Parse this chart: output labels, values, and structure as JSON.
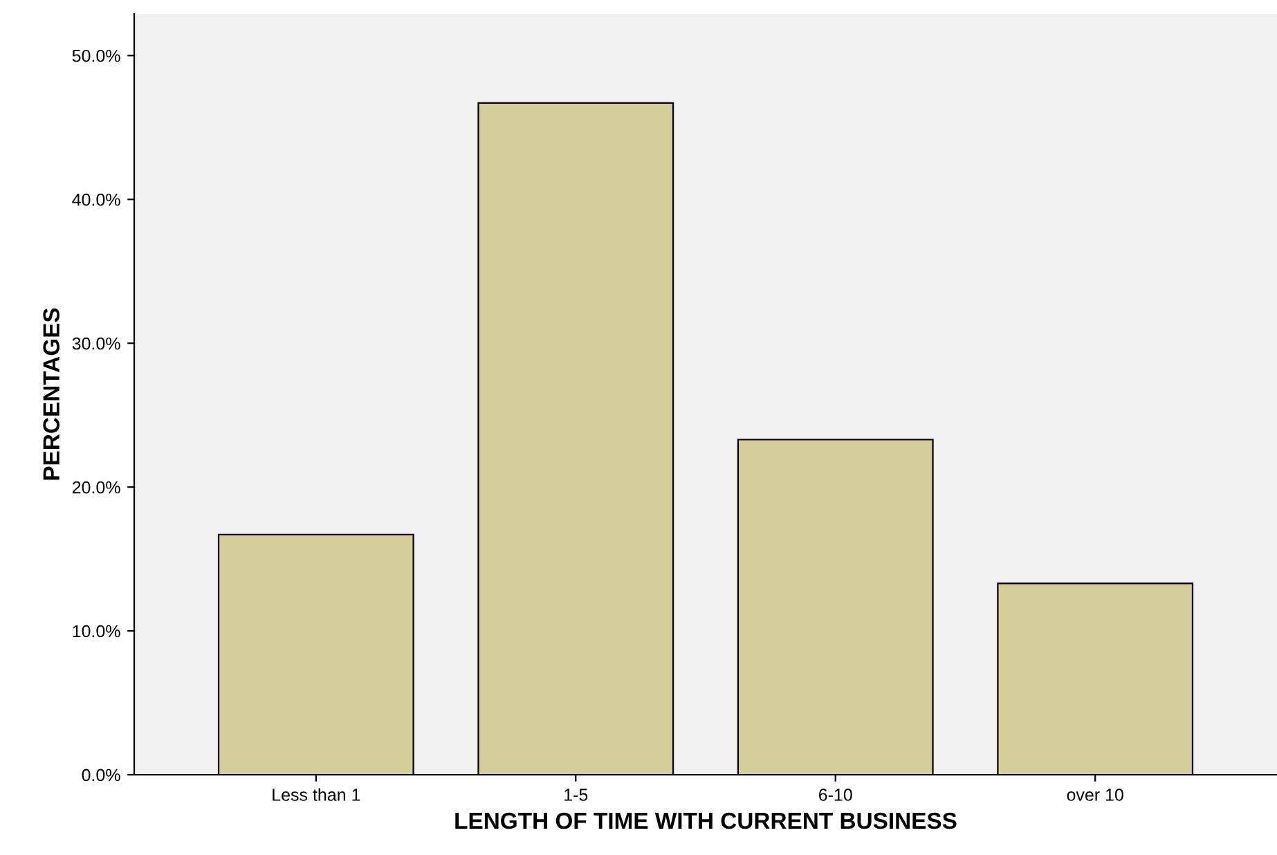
{
  "chart_data": {
    "type": "bar",
    "xlabel": "LENGTH OF TIME WITH CURRENT BUSINESS",
    "ylabel": "PERCENTAGES",
    "categories": [
      "Less than 1",
      "1-5",
      "6-10",
      "over 10"
    ],
    "values": [
      16.7,
      46.7,
      23.3,
      13.3
    ],
    "color": "#d3ce97",
    "ylim": [
      0,
      52.9
    ],
    "yticks": [
      {
        "value": 0,
        "label": "0.0%"
      },
      {
        "value": 10,
        "label": "10.0%"
      },
      {
        "value": 20,
        "label": "20.0%"
      },
      {
        "value": 30,
        "label": "30.0%"
      },
      {
        "value": 40,
        "label": "40.0%"
      },
      {
        "value": 50,
        "label": "50.0%"
      }
    ],
    "grid": false,
    "legend": false
  }
}
